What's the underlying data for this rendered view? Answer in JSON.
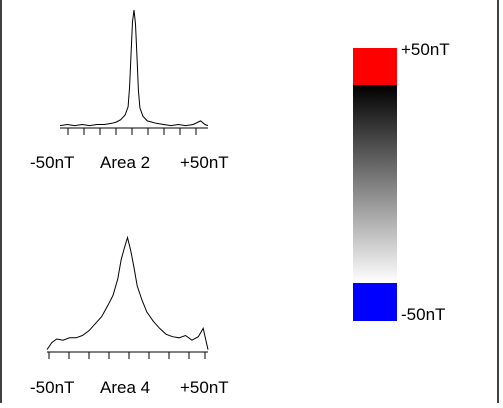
{
  "chart_data": [
    {
      "type": "line",
      "title": "Area 2",
      "x_min_label": "-50nT",
      "x_max_label": "+50nT",
      "xlim": [
        -50,
        50
      ],
      "ylim": [
        0,
        1
      ],
      "x": [
        -50,
        -45,
        -40,
        -35,
        -30,
        -25,
        -20,
        -15,
        -12,
        -9,
        -6,
        -4,
        -3,
        -2,
        -1,
        0,
        1,
        2,
        3,
        4,
        6,
        9,
        12,
        15,
        20,
        25,
        30,
        35,
        40,
        45,
        48,
        50
      ],
      "values": [
        0.02,
        0.03,
        0.02,
        0.03,
        0.02,
        0.03,
        0.03,
        0.04,
        0.05,
        0.07,
        0.11,
        0.18,
        0.35,
        0.62,
        0.9,
        1.0,
        0.88,
        0.6,
        0.32,
        0.17,
        0.1,
        0.06,
        0.05,
        0.04,
        0.03,
        0.02,
        0.03,
        0.02,
        0.03,
        0.06,
        0.03,
        0.02
      ]
    },
    {
      "type": "line",
      "title": "Area 4",
      "x_min_label": "-50nT",
      "x_max_label": "+50nT",
      "xlim": [
        -50,
        50
      ],
      "ylim": [
        0,
        1
      ],
      "x": [
        -50,
        -47,
        -44,
        -40,
        -36,
        -32,
        -28,
        -24,
        -20,
        -16,
        -12,
        -9,
        -6,
        -4,
        -2,
        0,
        2,
        4,
        6,
        9,
        12,
        16,
        20,
        24,
        28,
        32,
        36,
        40,
        44,
        47,
        50
      ],
      "values": [
        0.02,
        0.08,
        0.11,
        0.1,
        0.12,
        0.12,
        0.14,
        0.18,
        0.24,
        0.3,
        0.4,
        0.48,
        0.62,
        0.78,
        0.88,
        0.97,
        0.86,
        0.72,
        0.56,
        0.44,
        0.34,
        0.26,
        0.2,
        0.15,
        0.13,
        0.12,
        0.14,
        0.1,
        0.13,
        0.2,
        0.02
      ]
    }
  ],
  "colorbar": {
    "top_label": "+50nT",
    "bottom_label": "-50nT",
    "top_color": "#ff0000",
    "bottom_color": "#0000ff",
    "gradient_start": "#000000",
    "gradient_end": "#ffffff"
  }
}
